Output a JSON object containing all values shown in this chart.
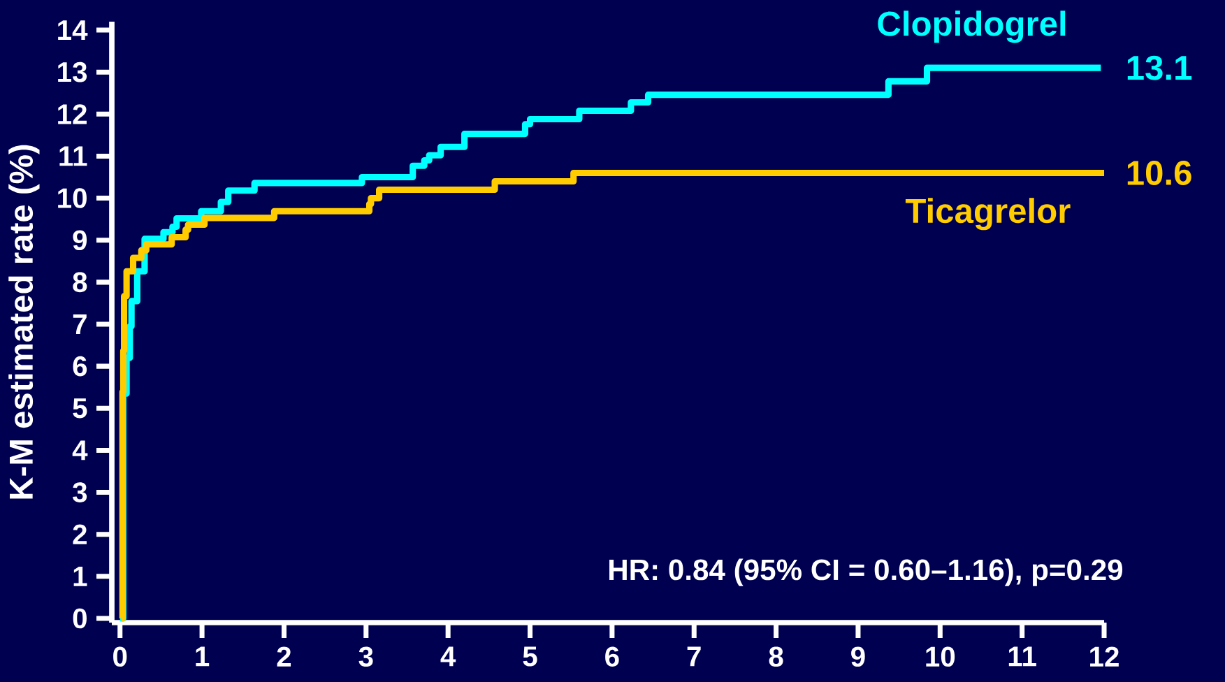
{
  "chart_data": {
    "type": "step",
    "ylabel": "K-M estimated rate (%)",
    "xlim": [
      -0.1,
      12
    ],
    "ylim": [
      -0.1,
      14.2
    ],
    "xticks": [
      0,
      1,
      2,
      3,
      4,
      5,
      6,
      7,
      8,
      9,
      10,
      11,
      12
    ],
    "yticks": [
      0,
      1,
      2,
      3,
      4,
      5,
      6,
      7,
      8,
      9,
      10,
      11,
      12,
      13,
      14
    ],
    "grid": false,
    "legend": false,
    "marker": "none",
    "line_style": "solid",
    "series": [
      {
        "name": "Clopidogrel",
        "color": "#00ffff",
        "x": [
          0,
          0.04,
          0.08,
          0.12,
          0.14,
          0.21,
          0.3,
          0.53,
          0.64,
          0.69,
          0.99,
          1.23,
          1.32,
          1.64,
          2.95,
          3.57,
          3.71,
          3.77,
          3.91,
          4.2,
          4.94,
          5.0,
          5.6,
          6.23,
          6.44,
          9.37,
          9.84,
          11.96
        ],
        "values": [
          0,
          5.35,
          6.2,
          6.95,
          7.55,
          8.26,
          9.03,
          9.19,
          9.32,
          9.52,
          9.69,
          9.91,
          10.18,
          10.36,
          10.5,
          10.77,
          10.9,
          11.02,
          11.22,
          11.53,
          11.76,
          11.88,
          12.08,
          12.28,
          12.46,
          12.78,
          13.1,
          13.1
        ]
      },
      {
        "name": "Ticagrelor",
        "color": "#ffcc00",
        "x": [
          0.02,
          0.03,
          0.04,
          0.05,
          0.08,
          0.16,
          0.26,
          0.32,
          0.63,
          0.8,
          0.83,
          1.03,
          1.88,
          3.04,
          3.06,
          3.16,
          4.57,
          5.53,
          12.0
        ],
        "values": [
          0,
          5.39,
          6.37,
          7.67,
          8.26,
          8.58,
          8.76,
          8.9,
          9.07,
          9.25,
          9.37,
          9.53,
          9.69,
          9.86,
          10.0,
          10.2,
          10.4,
          10.6,
          10.6
        ]
      }
    ],
    "annotations": [
      {
        "text": "13.1",
        "x": 12,
        "y": 13.1
      },
      {
        "text": "10.6",
        "x": 12,
        "y": 10.6
      },
      "HR: 0.84 (95% CI = 0.60–1.16), p=0.29"
    ]
  }
}
